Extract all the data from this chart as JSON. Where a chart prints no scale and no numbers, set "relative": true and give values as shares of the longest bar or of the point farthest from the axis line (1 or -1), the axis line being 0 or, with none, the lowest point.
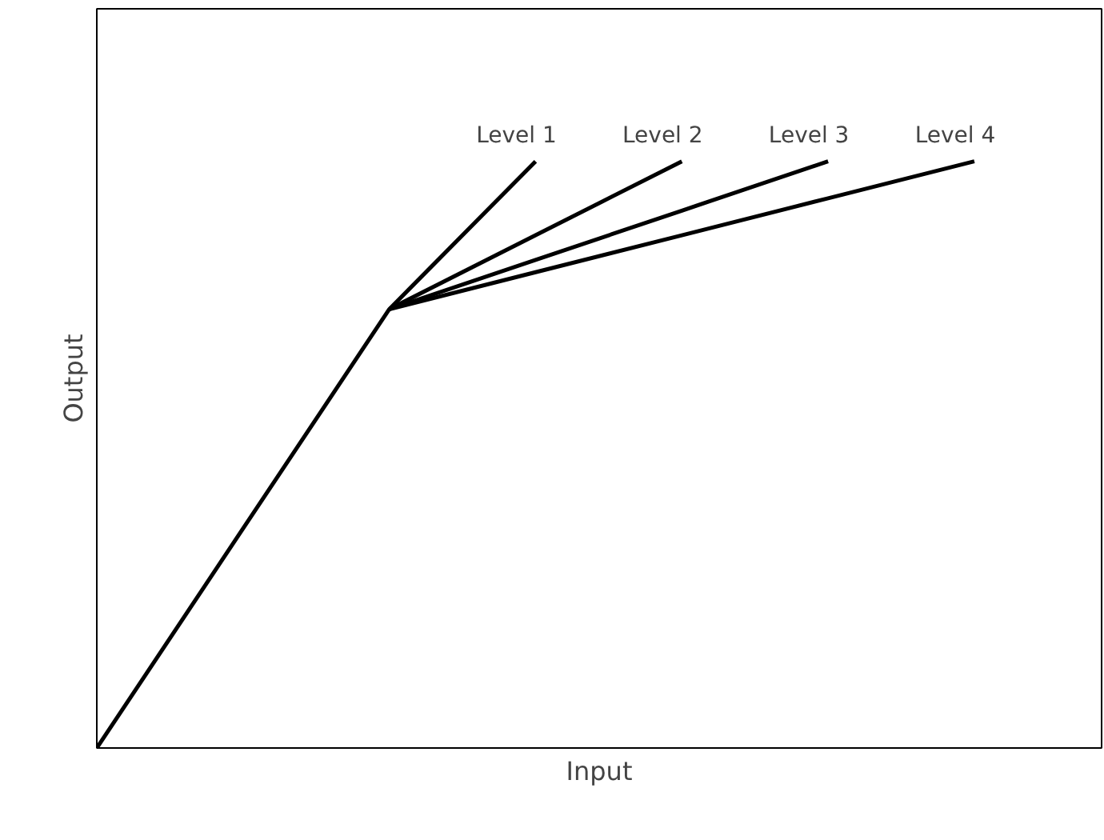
{
  "chart_data": {
    "type": "line",
    "relative": true,
    "xlabel": "Input",
    "ylabel": "Output",
    "tick_labels": false,
    "legend": false,
    "marker": "none",
    "line_style": "solid",
    "categories": [
      null,
      null,
      null,
      null,
      null,
      null,
      null
    ],
    "series": [
      {
        "name": "Level 1",
        "color": "#000000",
        "values": [
          0,
          0.374,
          0.748,
          1,
          null,
          null,
          null
        ]
      },
      {
        "name": "Level 2",
        "color": "#000000",
        "values": [
          null,
          null,
          0.748,
          0.874,
          1,
          null,
          null
        ]
      },
      {
        "name": "Level 3",
        "color": "#000000",
        "values": [
          null,
          null,
          0.748,
          0.832,
          0.916,
          1,
          null
        ]
      },
      {
        "name": "Level 4",
        "color": "#000000",
        "values": [
          null,
          null,
          0.748,
          0.811,
          0.874,
          0.937,
          1
        ]
      }
    ]
  }
}
